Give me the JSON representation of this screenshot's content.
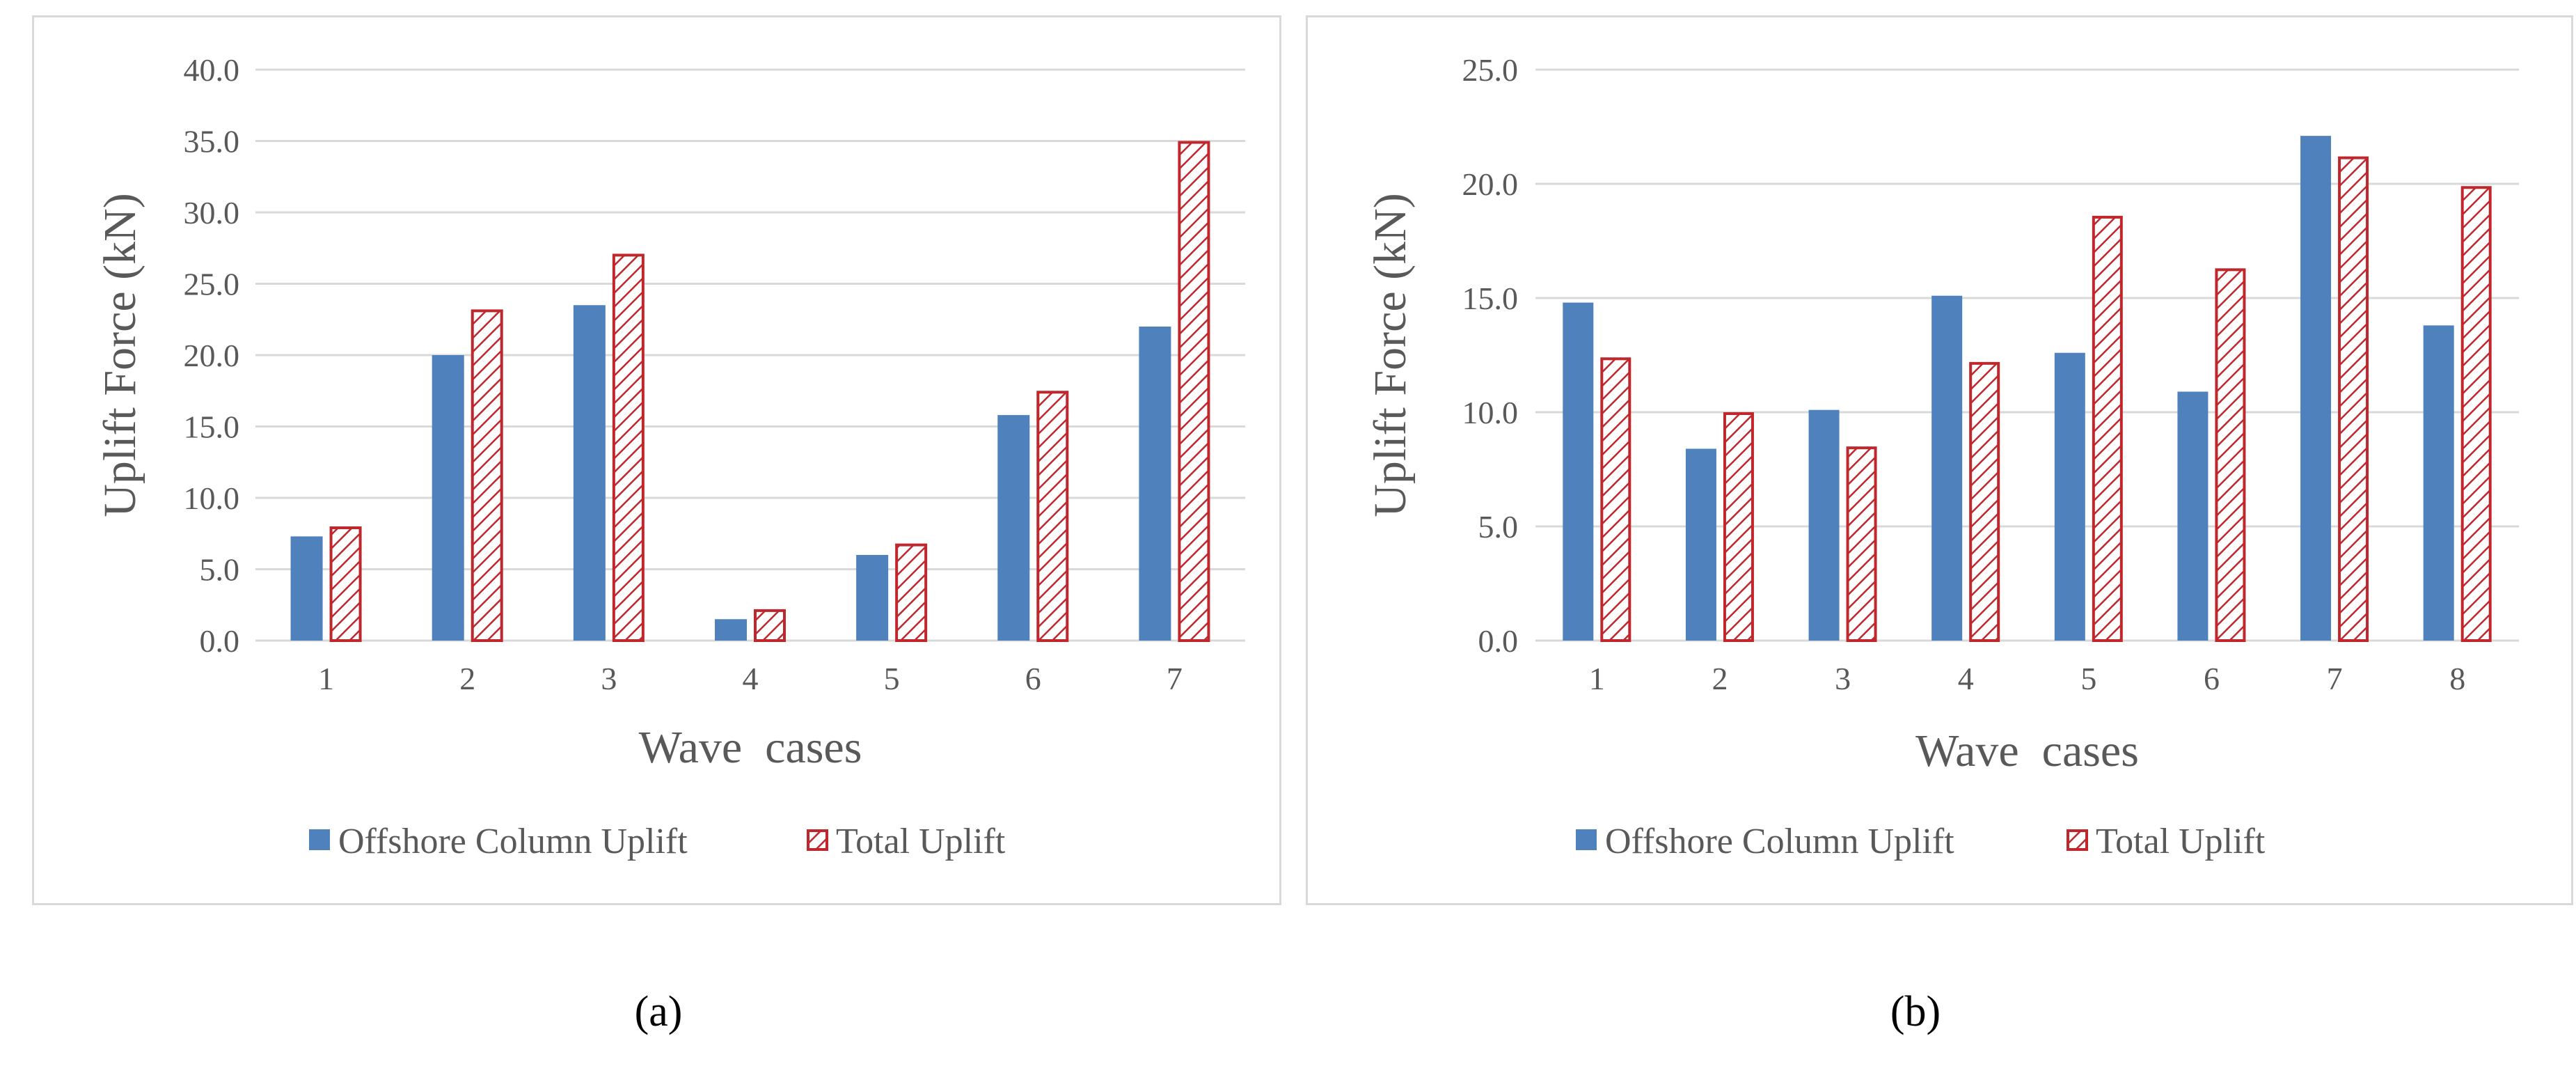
{
  "colors": {
    "offshore": "#4f81bd",
    "total_stroke": "#c0272d",
    "grid": "#d9d9d9"
  },
  "chart_data": [
    {
      "type": "bar",
      "panel": "a",
      "caption": "a",
      "categories": [
        "1",
        "2",
        "3",
        "4",
        "5",
        "6",
        "7"
      ],
      "series": [
        {
          "name": "Offshore Column Uplift",
          "values": [
            7.3,
            20.0,
            23.5,
            1.5,
            6.0,
            15.8,
            22.0
          ]
        },
        {
          "name": "Total Uplift",
          "values": [
            8.0,
            23.2,
            27.1,
            2.2,
            6.8,
            17.5,
            35.0
          ]
        }
      ],
      "xlabel": "Wave  cases",
      "ylabel": "Uplift Force (kN)",
      "ylim": [
        0,
        40
      ],
      "yticks": [
        "0.0",
        "5.0",
        "10.0",
        "15.0",
        "20.0",
        "25.0",
        "30.0",
        "35.0",
        "40.0"
      ],
      "legend": "bottom"
    },
    {
      "type": "bar",
      "panel": "b",
      "caption": "b",
      "categories": [
        "1",
        "2",
        "3",
        "4",
        "5",
        "6",
        "7",
        "8"
      ],
      "series": [
        {
          "name": "Offshore Column Uplift",
          "values": [
            14.8,
            8.4,
            10.1,
            15.1,
            12.6,
            10.9,
            22.1,
            13.8
          ]
        },
        {
          "name": "Total Uplift",
          "values": [
            12.4,
            10.0,
            8.5,
            12.2,
            18.6,
            16.3,
            21.2,
            19.9
          ]
        }
      ],
      "xlabel": "Wave  cases",
      "ylabel": "Uplift Force (kN)",
      "ylim": [
        0,
        25
      ],
      "yticks": [
        "0.0",
        "5.0",
        "10.0",
        "15.0",
        "20.0",
        "25.0"
      ],
      "legend": "bottom"
    }
  ]
}
